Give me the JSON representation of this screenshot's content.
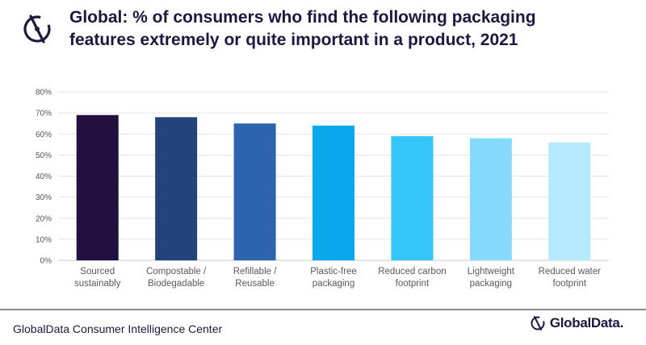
{
  "header": {
    "title_line1": "Global: % of consumers who find the following packaging",
    "title_line2": "features extremely or quite important in a product, 2021"
  },
  "footer": {
    "source": "GlobalData Consumer Intelligence Center",
    "brand": "GlobalData."
  },
  "icons": {
    "header_logo": "globaldata-logo-icon",
    "footer_logo": "globaldata-logo-icon"
  },
  "chart_data": {
    "type": "bar",
    "title": "Global: % of consumers who find the following packaging features extremely or quite important in a product, 2021",
    "categories": [
      [
        "Sourced",
        "sustainably"
      ],
      [
        "Compostable /",
        "Biodegadable"
      ],
      [
        "Refillable /",
        "Reusable"
      ],
      [
        "Plastic-free",
        "packaging"
      ],
      [
        "Reduced carbon",
        "footprint"
      ],
      [
        "Lightweight",
        "packaging"
      ],
      [
        "Reduced water",
        "footprint"
      ]
    ],
    "values": [
      69,
      68,
      65,
      64,
      59,
      58,
      56
    ],
    "colors": [
      "#221040",
      "#23447a",
      "#2e63b0",
      "#09a8ec",
      "#35c4f6",
      "#86dafd",
      "#b4e9fe"
    ],
    "ylim": [
      0,
      80
    ],
    "yticks": [
      "0%",
      "10%",
      "20%",
      "30%",
      "40%",
      "50%",
      "60%",
      "70%",
      "80%"
    ],
    "grid": true,
    "xlabel": "",
    "ylabel": ""
  }
}
